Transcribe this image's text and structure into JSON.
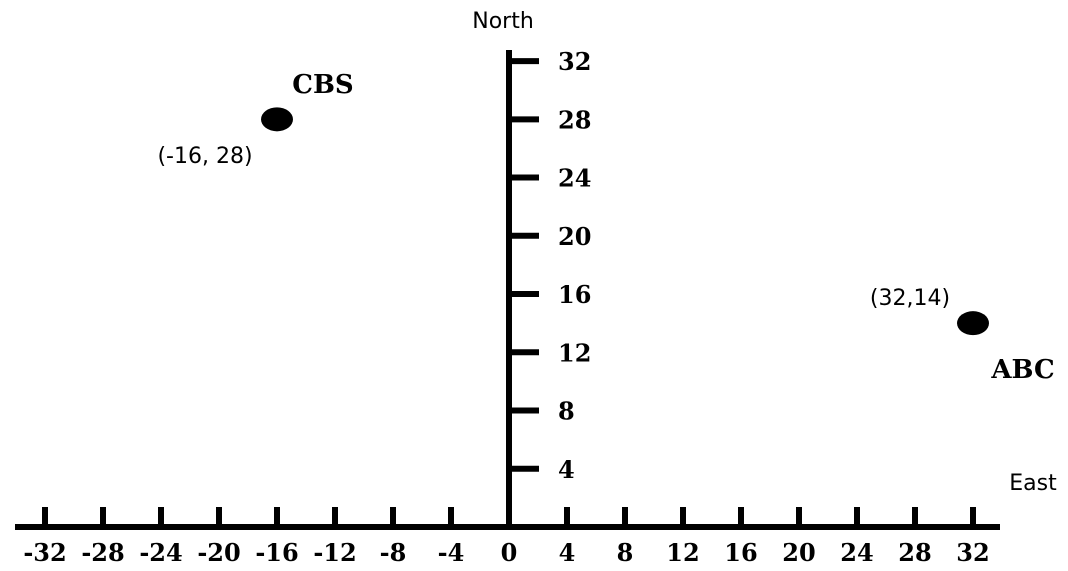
{
  "axes": {
    "north_label": "North",
    "east_label": "East",
    "x_ticks": [
      -32,
      -28,
      -24,
      -20,
      -16,
      -12,
      -8,
      -4,
      0,
      4,
      8,
      12,
      16,
      20,
      24,
      28,
      32
    ],
    "y_ticks": [
      4,
      8,
      12,
      16,
      20,
      24,
      28,
      32
    ],
    "x_range": [
      -32,
      32
    ],
    "y_range": [
      0,
      32
    ]
  },
  "points": [
    {
      "name": "CBS",
      "coord_label": "(-16, 28)",
      "x": -16,
      "y": 28
    },
    {
      "name": "ABC",
      "coord_label": "(32,14)",
      "x": 32,
      "y": 14
    }
  ]
}
